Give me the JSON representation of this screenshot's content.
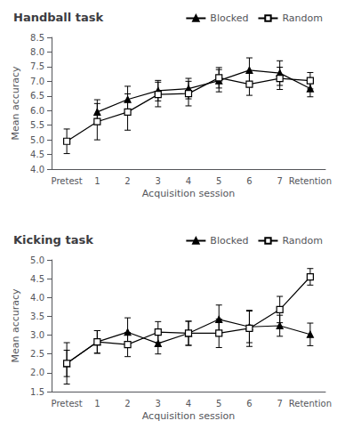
{
  "chart_data": [
    {
      "type": "line",
      "title": "Handball task",
      "xlabel": "Acquisition session",
      "ylabel": "Mean accuracy",
      "categories": [
        "Pretest",
        "1",
        "2",
        "3",
        "4",
        "5",
        "6",
        "7",
        "Retention"
      ],
      "ylim": [
        4.0,
        8.5
      ],
      "yticks": [
        {
          "value": 4.0,
          "label": "4.0"
        },
        4.5,
        {
          "value": 5.0,
          "label": "5.0"
        },
        5.5,
        {
          "value": 6.0,
          "label": "6.0"
        },
        6.5,
        {
          "value": 7.0,
          "label": "7.0"
        },
        7.5,
        {
          "value": 8.0,
          "label": "8.0"
        },
        8.5
      ],
      "grid": false,
      "legend": "upper right",
      "series": [
        {
          "name": "Blocked",
          "color": "#000000",
          "marker": "triangle",
          "values": [
            null,
            5.95,
            6.38,
            6.68,
            6.75,
            7.02,
            7.38,
            7.28,
            6.75
          ],
          "yerr": [
            null,
            0.42,
            0.45,
            0.35,
            0.35,
            0.38,
            0.42,
            0.42,
            0.28
          ]
        },
        {
          "name": "Random",
          "color": "#000000",
          "marker": "square-open",
          "values": [
            4.95,
            5.62,
            5.95,
            6.55,
            6.58,
            7.12,
            6.9,
            7.1,
            7.02
          ],
          "yerr": [
            0.42,
            0.62,
            0.62,
            0.42,
            0.42,
            0.35,
            0.38,
            0.38,
            0.28
          ]
        }
      ]
    },
    {
      "type": "line",
      "title": "Kicking task",
      "xlabel": "Acquisition session",
      "ylabel": "Mean accuracy",
      "categories": [
        "Pretest",
        "1",
        "2",
        "3",
        "4",
        "5",
        "6",
        "7",
        "Retention"
      ],
      "ylim": [
        1.5,
        5.0
      ],
      "yticks": [
        1.5,
        {
          "value": 2.0,
          "label": "2.0"
        },
        2.5,
        {
          "value": 3.0,
          "label": "3.0"
        },
        3.5,
        {
          "value": 4.0,
          "label": "4.0"
        },
        4.5,
        {
          "value": 5.0,
          "label": "5.0"
        }
      ],
      "grid": false,
      "legend": "upper right",
      "series": [
        {
          "name": "Blocked",
          "color": "#000000",
          "marker": "triangle",
          "values": [
            2.25,
            2.82,
            3.08,
            2.78,
            3.05,
            3.42,
            3.22,
            3.25,
            3.02
          ],
          "yerr": [
            0.35,
            0.3,
            0.38,
            0.28,
            0.32,
            0.38,
            0.42,
            0.28,
            0.3
          ]
        },
        {
          "name": "Random",
          "color": "#000000",
          "marker": "square-open",
          "values": [
            2.25,
            2.82,
            2.75,
            3.08,
            3.05,
            3.05,
            3.18,
            3.68,
            4.55
          ],
          "yerr": [
            0.55,
            0.3,
            0.32,
            0.28,
            0.32,
            0.38,
            0.48,
            0.35,
            0.22
          ]
        }
      ]
    }
  ]
}
